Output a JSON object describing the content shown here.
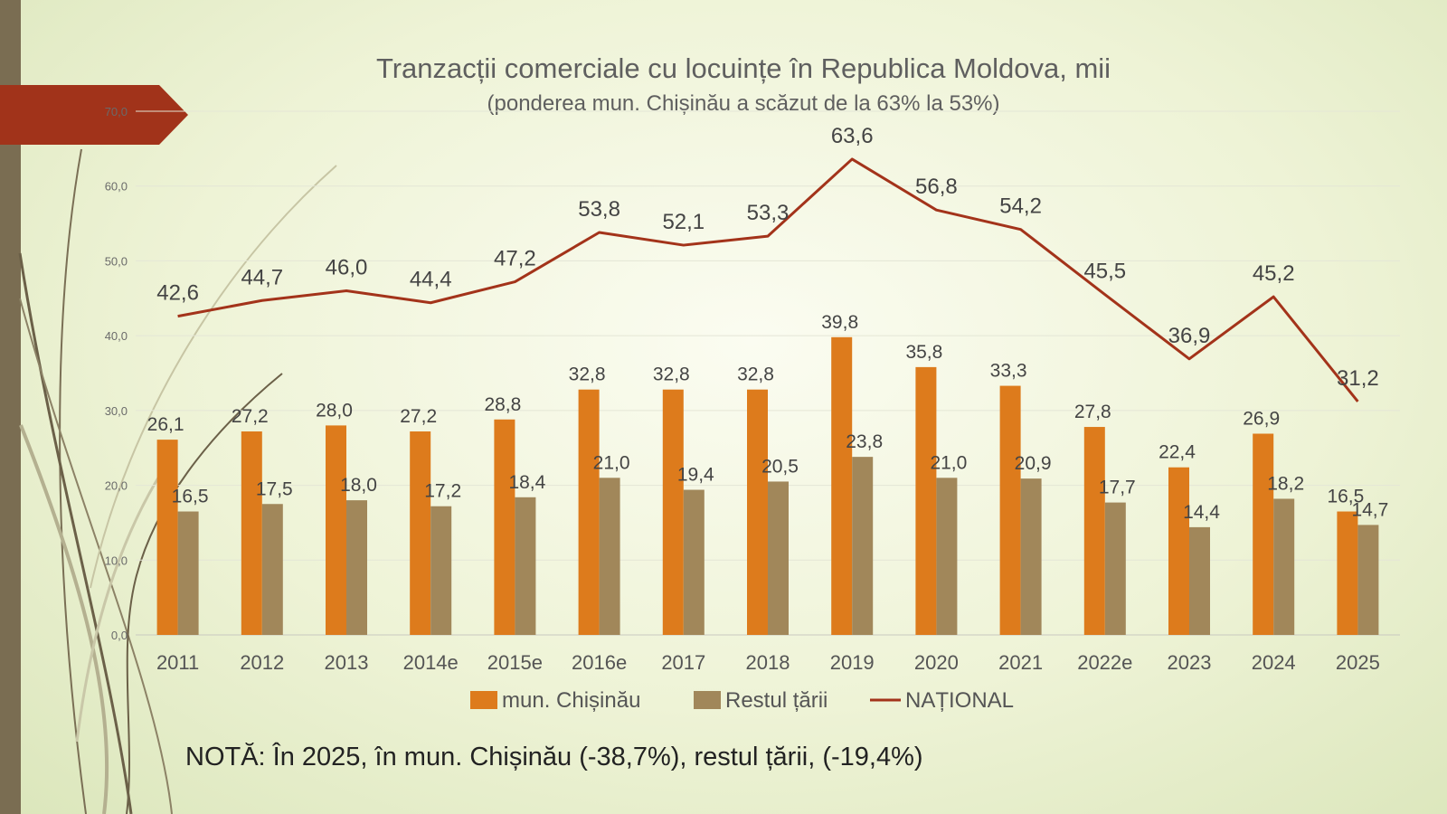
{
  "colors": {
    "chisinau": "#dd7b1c",
    "rest": "#a1875a",
    "national": "#a3331a",
    "banner": "#a1331a",
    "stripe": "#7a6d52",
    "curve_dark": "#6b6048",
    "curve_light": "#c7c5a4"
  },
  "chart_data": {
    "type": "bar",
    "title": "Tranzacții comerciale cu locuințe în Republica Moldova, mii",
    "subtitle": "(ponderea mun. Chișinău  a scăzut de la 63% la 53%)",
    "categories": [
      "2011",
      "2012",
      "2013",
      "2014e",
      "2015e",
      "2016e",
      "2017",
      "2018",
      "2019",
      "2020",
      "2021",
      "2022e",
      "2023",
      "2024",
      "2025"
    ],
    "ylim": [
      0,
      70
    ],
    "yticks": [
      "0,0",
      "10,0",
      "20,0",
      "30,0",
      "40,0",
      "50,0",
      "60,0",
      "70,0"
    ],
    "grid": true,
    "legend_position": "bottom",
    "series": [
      {
        "name": "mun. Chișinău",
        "type": "bar",
        "values": [
          26.1,
          27.2,
          28.0,
          27.2,
          28.8,
          32.8,
          32.8,
          32.8,
          39.8,
          35.8,
          33.3,
          27.8,
          22.4,
          26.9,
          16.5
        ],
        "labels": [
          "26,1",
          "27,2",
          "28,0",
          "27,2",
          "28,8",
          "32,8",
          "32,8",
          "32,8",
          "39,8",
          "35,8",
          "33,3",
          "27,8",
          "22,4",
          "26,9",
          "16,5"
        ]
      },
      {
        "name": "Restul țării",
        "type": "bar",
        "values": [
          16.5,
          17.5,
          18.0,
          17.2,
          18.4,
          21.0,
          19.4,
          20.5,
          23.8,
          21.0,
          20.9,
          17.7,
          14.4,
          18.2,
          14.7
        ],
        "labels": [
          "16,5",
          "17,5",
          "18,0",
          "17,2",
          "18,4",
          "21,0",
          "19,4",
          "20,5",
          "23,8",
          "21,0",
          "20,9",
          "17,7",
          "14,4",
          "18,2",
          "14,7"
        ]
      },
      {
        "name": "NAȚIONAL",
        "type": "line",
        "values": [
          42.6,
          44.7,
          46.0,
          44.4,
          47.2,
          53.8,
          52.1,
          53.3,
          63.6,
          56.8,
          54.2,
          45.5,
          36.9,
          45.2,
          31.2
        ],
        "labels": [
          "42,6",
          "44,7",
          "46,0",
          "44,4",
          "47,2",
          "53,8",
          "52,1",
          "53,3",
          "63,6",
          "56,8",
          "54,2",
          "45,5",
          "36,9",
          "45,2",
          "31,2"
        ]
      }
    ]
  },
  "note": "NOTĂ: În 2025, în mun. Chișinău (-38,7%), restul țării, (-19,4%)"
}
